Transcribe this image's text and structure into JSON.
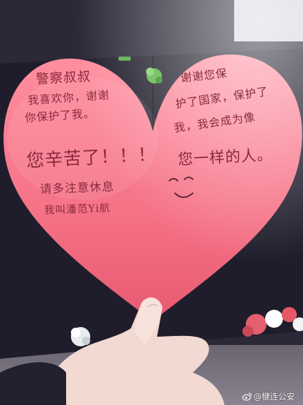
{
  "card": {
    "left_half": {
      "line_1": "警察叔叔",
      "line_2": "我喜欢你，谢谢",
      "line_3": "你保护了我。",
      "line_4": "您辛苦了！！！",
      "line_5": "请多注意休息",
      "line_6": "我叫潘范Yi航"
    },
    "right_half": {
      "line_1": "谢谢您保",
      "line_2": "护了国家，保护了",
      "line_3": "我，我会成为像",
      "line_4": "您一样的人。"
    }
  },
  "watermark": {
    "text": "@犍连公安"
  },
  "colors": {
    "heart": "#f47b8c",
    "ink": "#8a2a3c",
    "paper": "#1f1d2b"
  }
}
